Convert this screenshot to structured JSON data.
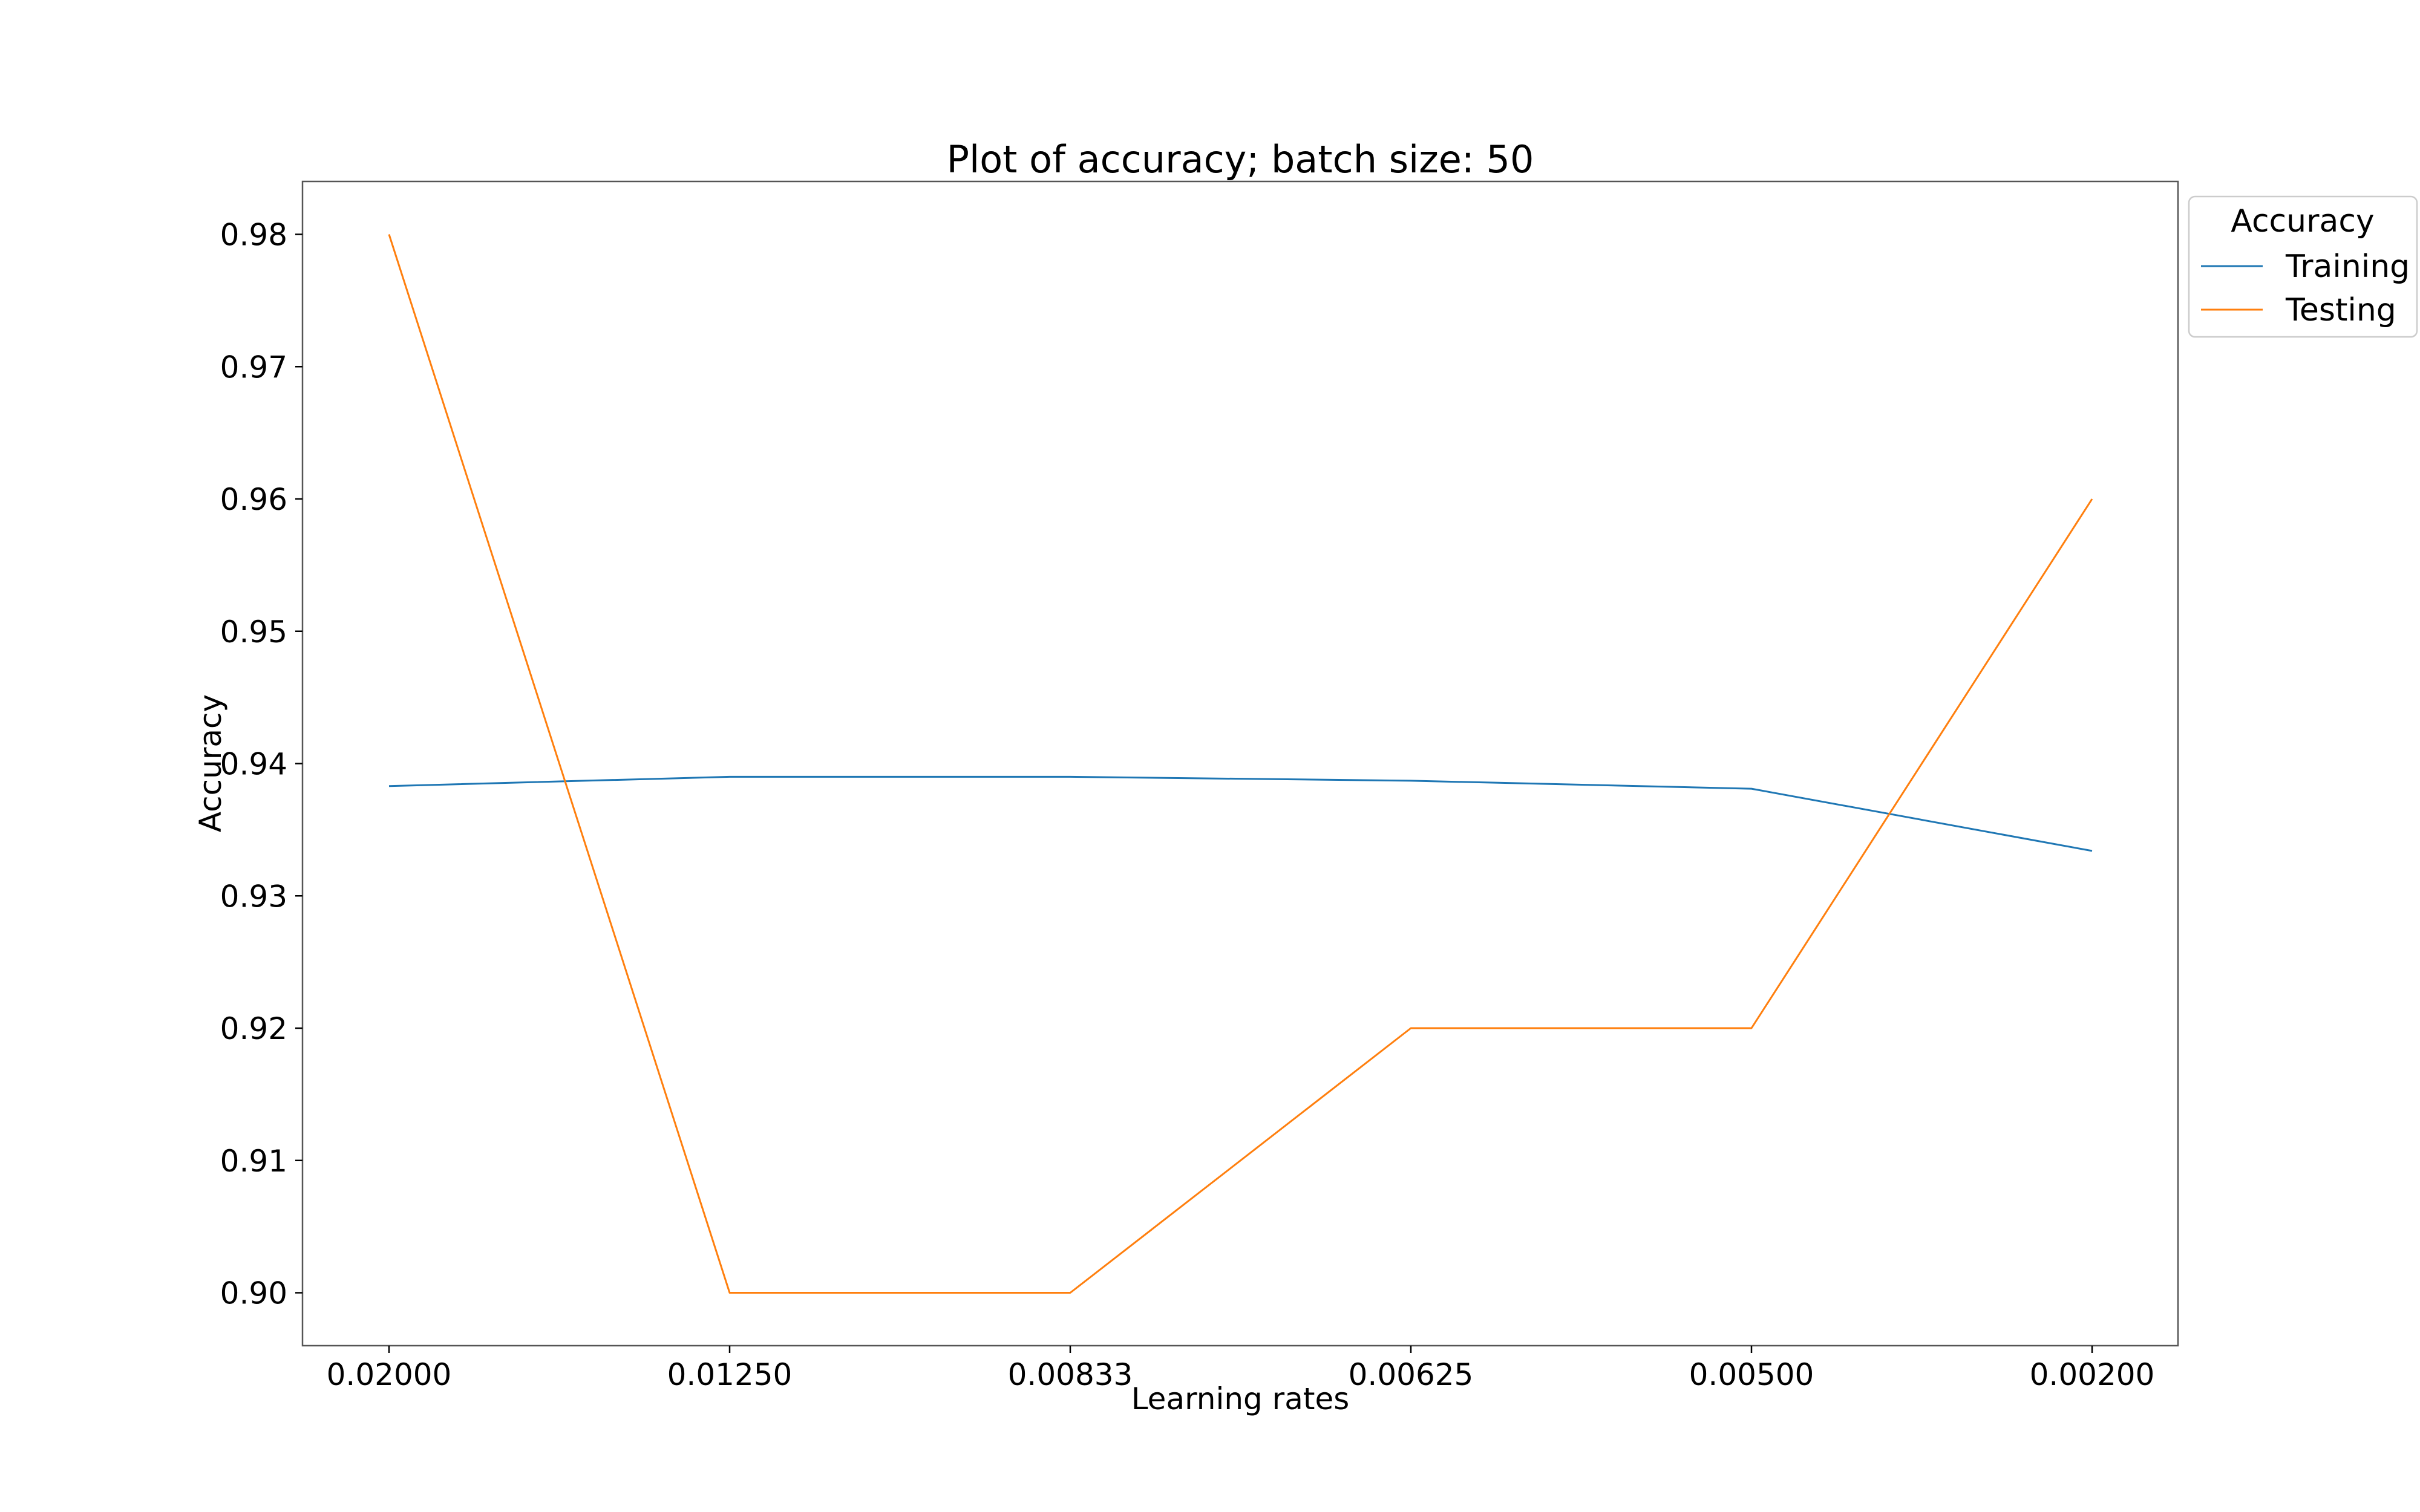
{
  "chart_data": {
    "type": "line",
    "title": "Plot of accuracy; batch size: 50",
    "xlabel": "Learning rates",
    "ylabel": "Accuracy",
    "categories": [
      "0.02000",
      "0.01250",
      "0.00833",
      "0.00625",
      "0.00500",
      "0.00200"
    ],
    "ylim": [
      0.896,
      0.984
    ],
    "yticks": [
      "0.90",
      "0.91",
      "0.92",
      "0.93",
      "0.94",
      "0.95",
      "0.96",
      "0.97",
      "0.98"
    ],
    "grid": false,
    "legend": {
      "title": "Accuracy",
      "placement": "outside-top-right"
    },
    "series": [
      {
        "name": "Training",
        "color": "#1f77b4",
        "values": [
          0.9383,
          0.939,
          0.939,
          0.9387,
          0.9381,
          0.9334
        ]
      },
      {
        "name": "Testing",
        "color": "#ff7f0e",
        "values": [
          0.98,
          0.9,
          0.9,
          0.92,
          0.92,
          0.96
        ]
      }
    ]
  }
}
